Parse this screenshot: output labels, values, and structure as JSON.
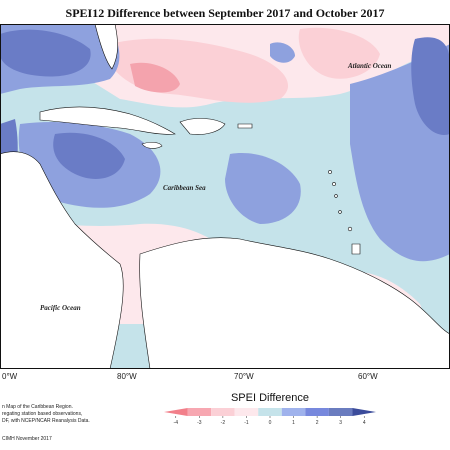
{
  "title": "SPEI12 Difference between September 2017 and October 2017",
  "map": {
    "region": "Caribbean",
    "labels": {
      "atlantic": "Atlantic Ocean",
      "caribbean": "Caribbean Sea",
      "pacific": "Pacific Ocean"
    },
    "longitudes": [
      "0°W",
      "80°W",
      "70°W",
      "60°W"
    ]
  },
  "notes": [
    "n Map of the Caribbean Region.",
    "regating station based observations,",
    "DF, with NCEP/NCAR Reanalysis Data."
  ],
  "credit": "CIMH November 2017",
  "legend": {
    "title": "SPEI Difference",
    "ticks": [
      "-4",
      "-3",
      "-2",
      "-1",
      "0",
      "1",
      "2",
      "3",
      "4"
    ],
    "colors": [
      "#f27f8a",
      "#f7a7b1",
      "#fbd0d6",
      "#fde8ec",
      "#c5e3ea",
      "#9fb2ec",
      "#7788dd",
      "#6a7cbf",
      "#3b4c9b"
    ]
  },
  "colors": {
    "land": "#ffffff",
    "coast": "#111111",
    "blue_dark": "#6a7cc6",
    "blue_mid": "#8ea1de",
    "light_blue": "#c5e3ea",
    "pink": "#fbd0d6",
    "pink_light": "#fde8ec",
    "red": "#f4a3ad"
  }
}
